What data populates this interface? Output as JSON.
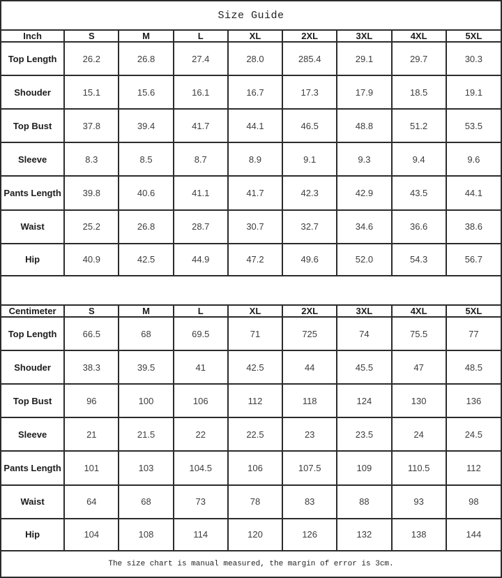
{
  "page": {
    "title": "Size Guide",
    "footer_note": "The size chart is manual measured, the margin of error is 3cm."
  },
  "colors": {
    "border": "#2b2b2b",
    "header_text": "#1c1c1c",
    "value_text": "#3d3d3d",
    "background": "#ffffff"
  },
  "tables": [
    {
      "unit_label": "Inch",
      "sizes": [
        "S",
        "M",
        "L",
        "XL",
        "2XL",
        "3XL",
        "4XL",
        "5XL"
      ],
      "rows": [
        {
          "label": "Top Length",
          "values": [
            "26.2",
            "26.8",
            "27.4",
            "28.0",
            "285.4",
            "29.1",
            "29.7",
            "30.3"
          ]
        },
        {
          "label": "Shouder",
          "values": [
            "15.1",
            "15.6",
            "16.1",
            "16.7",
            "17.3",
            "17.9",
            "18.5",
            "19.1"
          ]
        },
        {
          "label": "Top Bust",
          "values": [
            "37.8",
            "39.4",
            "41.7",
            "44.1",
            "46.5",
            "48.8",
            "51.2",
            "53.5"
          ]
        },
        {
          "label": "Sleeve",
          "values": [
            "8.3",
            "8.5",
            "8.7",
            "8.9",
            "9.1",
            "9.3",
            "9.4",
            "9.6"
          ]
        },
        {
          "label": "Pants Length",
          "values": [
            "39.8",
            "40.6",
            "41.1",
            "41.7",
            "42.3",
            "42.9",
            "43.5",
            "44.1"
          ]
        },
        {
          "label": "Waist",
          "values": [
            "25.2",
            "26.8",
            "28.7",
            "30.7",
            "32.7",
            "34.6",
            "36.6",
            "38.6"
          ]
        },
        {
          "label": "Hip",
          "values": [
            "40.9",
            "42.5",
            "44.9",
            "47.2",
            "49.6",
            "52.0",
            "54.3",
            "56.7"
          ]
        }
      ]
    },
    {
      "unit_label": "Centimeter",
      "sizes": [
        "S",
        "M",
        "L",
        "XL",
        "2XL",
        "3XL",
        "4XL",
        "5XL"
      ],
      "rows": [
        {
          "label": "Top Length",
          "values": [
            "66.5",
            "68",
            "69.5",
            "71",
            "725",
            "74",
            "75.5",
            "77"
          ]
        },
        {
          "label": "Shouder",
          "values": [
            "38.3",
            "39.5",
            "41",
            "42.5",
            "44",
            "45.5",
            "47",
            "48.5"
          ]
        },
        {
          "label": "Top Bust",
          "values": [
            "96",
            "100",
            "106",
            "112",
            "118",
            "124",
            "130",
            "136"
          ]
        },
        {
          "label": "Sleeve",
          "values": [
            "21",
            "21.5",
            "22",
            "22.5",
            "23",
            "23.5",
            "24",
            "24.5"
          ]
        },
        {
          "label": "Pants Length",
          "values": [
            "101",
            "103",
            "104.5",
            "106",
            "107.5",
            "109",
            "110.5",
            "112"
          ]
        },
        {
          "label": "Waist",
          "values": [
            "64",
            "68",
            "73",
            "78",
            "83",
            "88",
            "93",
            "98"
          ]
        },
        {
          "label": "Hip",
          "values": [
            "104",
            "108",
            "114",
            "120",
            "126",
            "132",
            "138",
            "144"
          ]
        }
      ]
    }
  ]
}
